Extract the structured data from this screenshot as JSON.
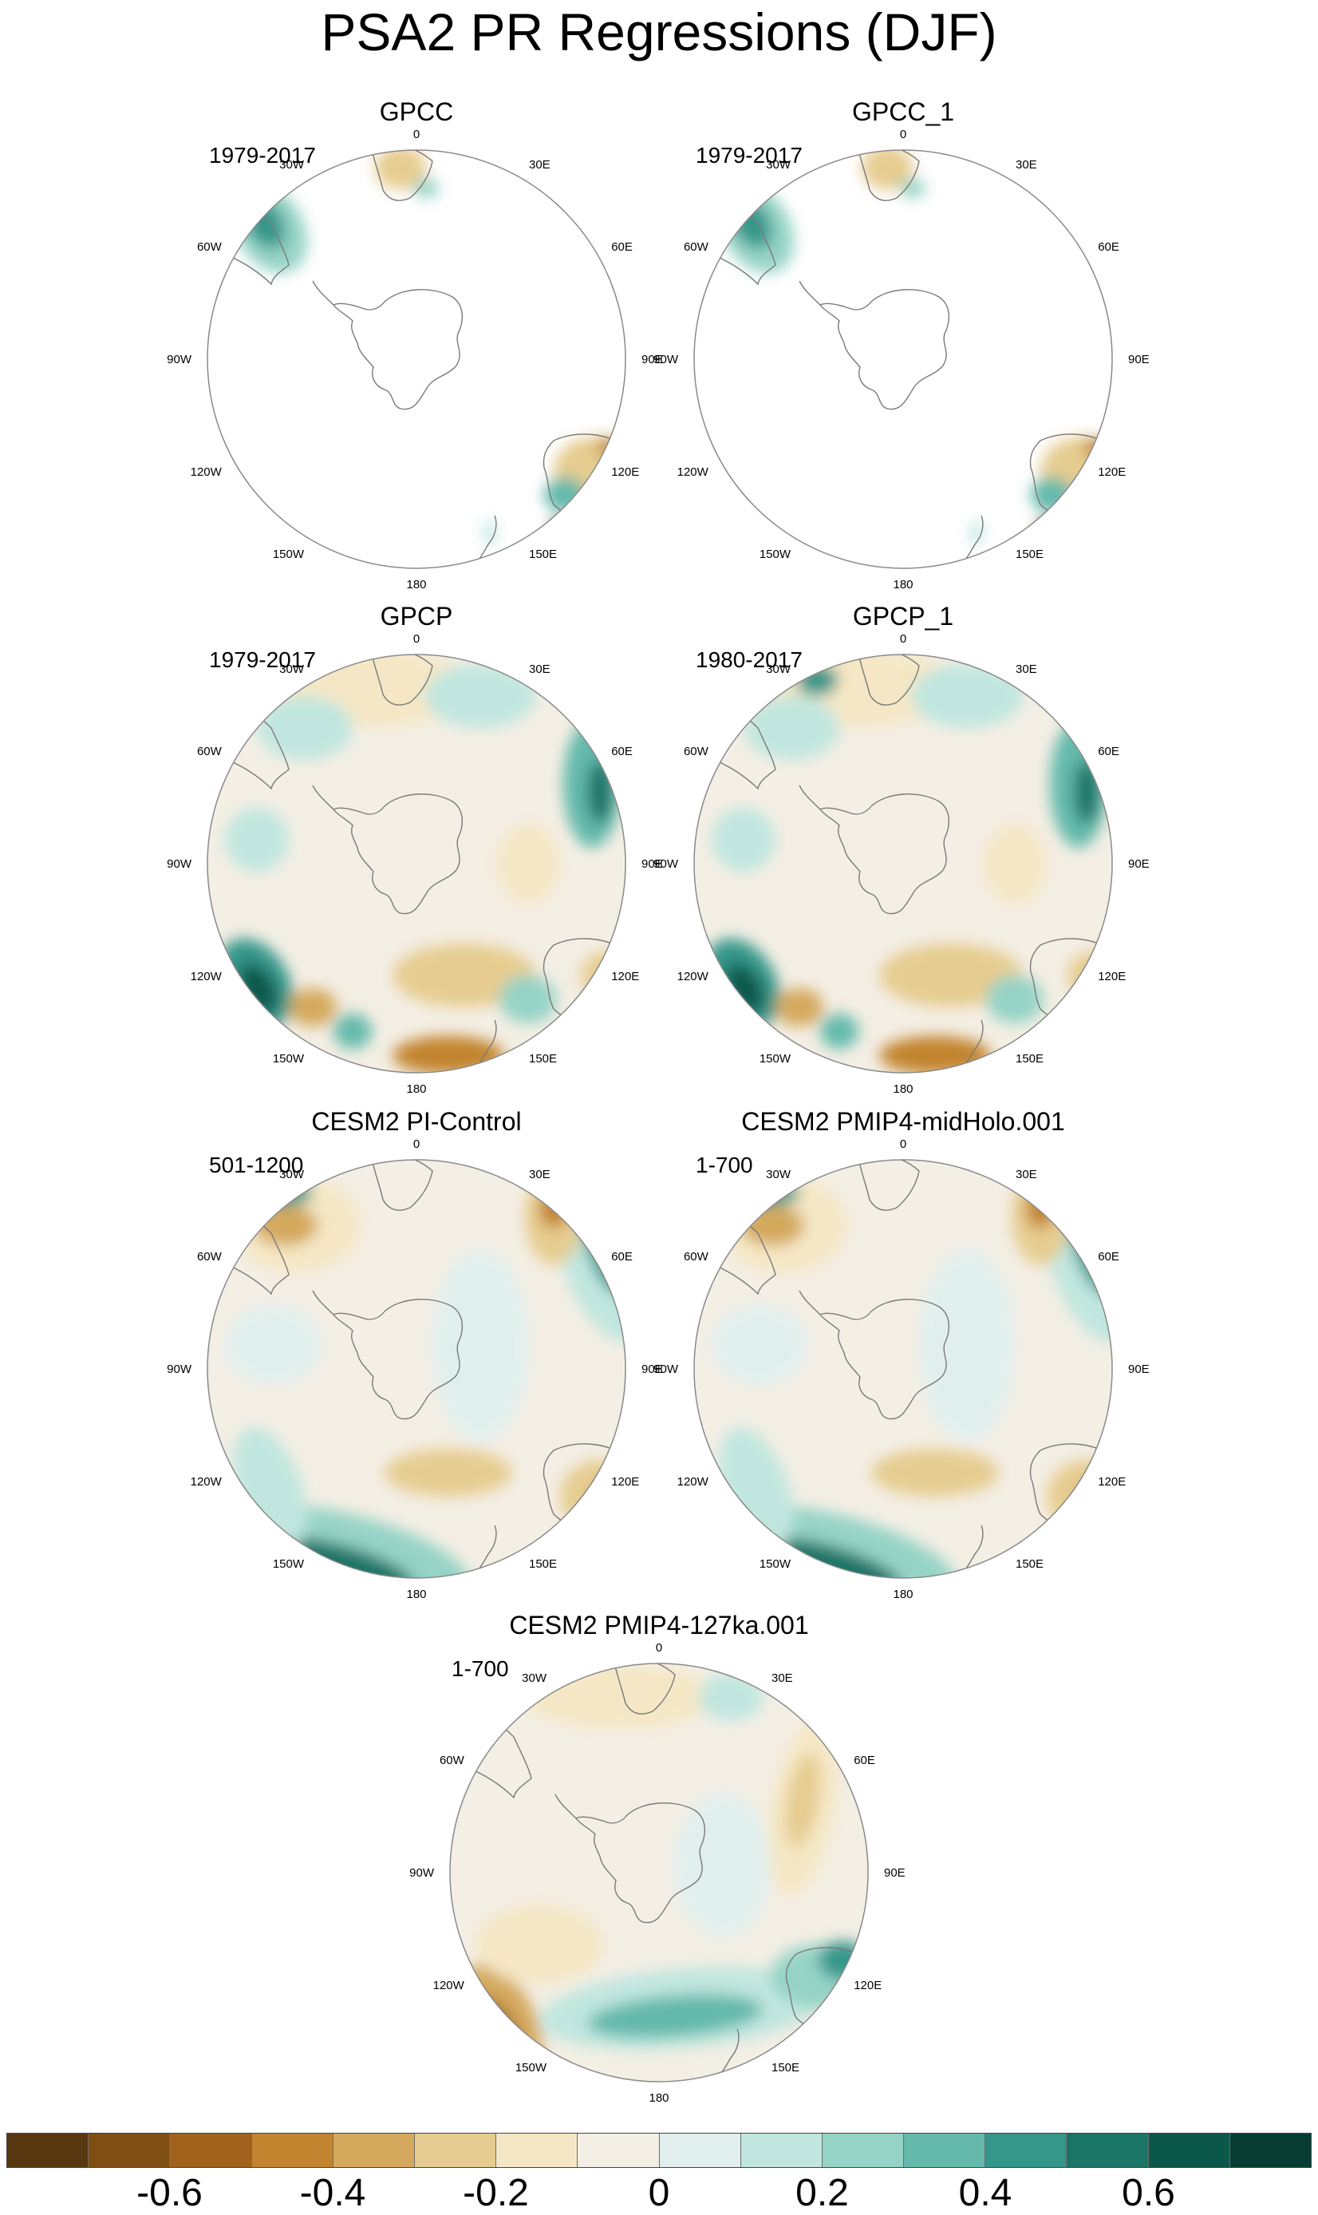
{
  "title": "PSA2 PR Regressions (DJF)",
  "lon_labels": [
    "0",
    "30E",
    "60E",
    "90E",
    "120E",
    "150E",
    "180",
    "150W",
    "120W",
    "90W",
    "60W",
    "30W"
  ],
  "panels": [
    {
      "title": "GPCC",
      "period": "1979-2017",
      "coverage": "land"
    },
    {
      "title": "GPCC_1",
      "period": "1979-2017",
      "coverage": "land"
    },
    {
      "title": "GPCP",
      "period": "1979-2017",
      "coverage": "full"
    },
    {
      "title": "GPCP_1",
      "period": "1980-2017",
      "coverage": "full"
    },
    {
      "title": "CESM2 PI-Control",
      "period": "501-1200",
      "coverage": "full"
    },
    {
      "title": "CESM2 PMIP4-midHolo.001",
      "period": "1-700",
      "coverage": "full"
    },
    {
      "title": "CESM2 PMIP4-127ka.001",
      "period": "1-700",
      "coverage": "full"
    }
  ],
  "colorbar": {
    "colors": [
      "#573710",
      "#7e4e12",
      "#a0621d",
      "#c2842f",
      "#d4a95d",
      "#e6cc90",
      "#f5e7c5",
      "#f4efe5",
      "#e0efee",
      "#c0e6df",
      "#95d3c6",
      "#64b9ab",
      "#35968a",
      "#1a7567",
      "#0b584b",
      "#063c31"
    ],
    "tick_labels": [
      "-0.6",
      "-0.4",
      "-0.2",
      "0",
      "0.2",
      "0.4",
      "0.6"
    ]
  }
}
